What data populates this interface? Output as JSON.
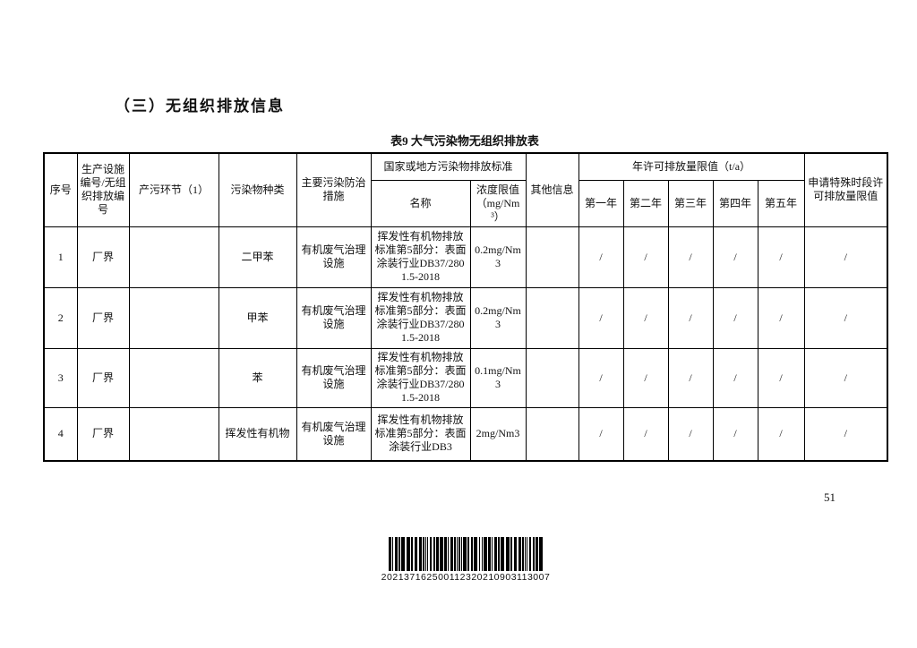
{
  "page": {
    "section_heading": "（三）无组织排放信息",
    "page_number": "51"
  },
  "table": {
    "title": "表9 大气污染物无组织排放表",
    "header": {
      "no": "序号",
      "facility": "生产设施编号/无组织排放编号",
      "process": "产污环节（1）",
      "pollutant": "污染物种类",
      "measure": "主要污染防治措施",
      "standard_group": "国家或地方污染物排放标准",
      "standard_name": "名称",
      "limit": "浓度限值（mg/Nm³）",
      "other": "其他信息",
      "annual_group": "年许可排放量限值（t/a）",
      "years": [
        "第一年",
        "第二年",
        "第三年",
        "第四年",
        "第五年"
      ],
      "special": "申请特殊时段许可排放量限值"
    },
    "rows": [
      {
        "no": "1",
        "facility": "厂界",
        "process": "",
        "pollutant": "二甲苯",
        "measure": "有机废气治理设施",
        "standard_name": "挥发性有机物排放标准第5部分：表面涂装行业DB37/2801.5-2018",
        "limit": "0.2mg/Nm3",
        "other": "",
        "y1": "/",
        "y2": "/",
        "y3": "/",
        "y4": "/",
        "y5": "/",
        "special": "/"
      },
      {
        "no": "2",
        "facility": "厂界",
        "process": "",
        "pollutant": "甲苯",
        "measure": "有机废气治理设施",
        "standard_name": "挥发性有机物排放标准第5部分：表面涂装行业DB37/2801.5-2018",
        "limit": "0.2mg/Nm3",
        "other": "",
        "y1": "/",
        "y2": "/",
        "y3": "/",
        "y4": "/",
        "y5": "/",
        "special": "/"
      },
      {
        "no": "3",
        "facility": "厂界",
        "process": "",
        "pollutant": "苯",
        "measure": "有机废气治理设施",
        "standard_name": "挥发性有机物排放标准第5部分：表面涂装行业DB37/2801.5-2018",
        "limit": "0.1mg/Nm3",
        "other": "",
        "y1": "/",
        "y2": "/",
        "y3": "/",
        "y4": "/",
        "y5": "/",
        "special": "/"
      },
      {
        "no": "4",
        "facility": "厂界",
        "process": "",
        "pollutant": "挥发性有机物",
        "measure": "有机废气治理设施",
        "standard_name": "挥发性有机物排放标准第5部分：表面涂装行业DB3",
        "limit": "2mg/Nm3",
        "other": "",
        "y1": "/",
        "y2": "/",
        "y3": "/",
        "y4": "/",
        "y5": "/",
        "special": "/"
      }
    ]
  },
  "barcode": {
    "value": "202137162500112320210903113007"
  }
}
